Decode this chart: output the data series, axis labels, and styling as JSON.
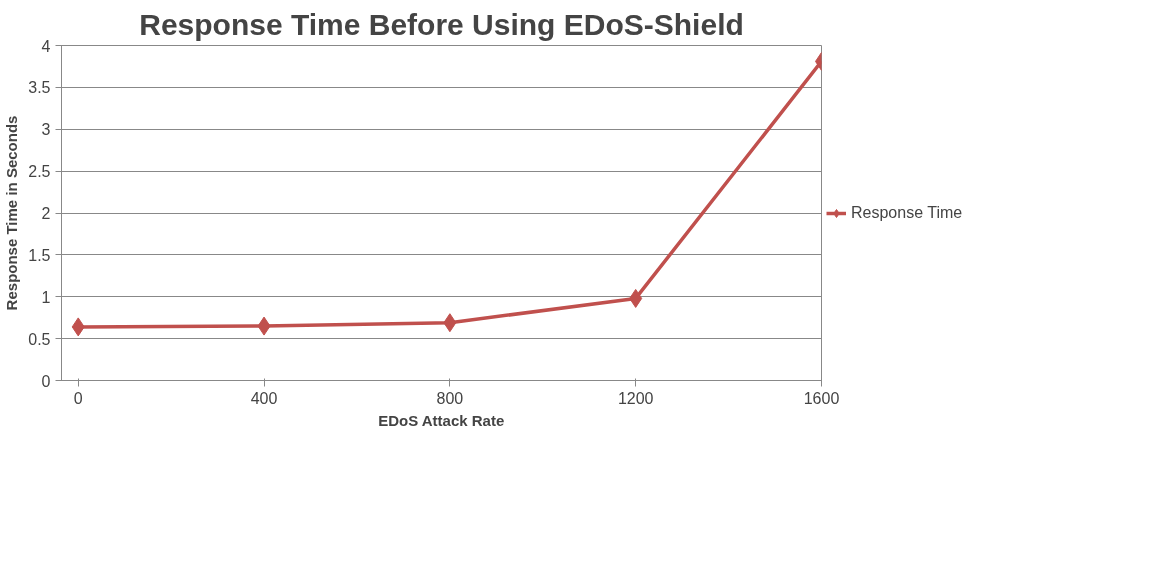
{
  "chart_data": {
    "type": "line",
    "title": "Response Time Before Using EDoS-Shield",
    "xlabel": "EDoS Attack Rate",
    "ylabel": "Response Time in Seconds",
    "categories": [
      "0",
      "400",
      "800",
      "1200",
      "1600"
    ],
    "series": [
      {
        "name": "Response Time",
        "color": "#c0504d",
        "values": [
          0.64,
          0.65,
          0.69,
          0.98,
          3.81
        ]
      }
    ],
    "ylim": [
      0,
      4
    ],
    "yticks": [
      0,
      0.5,
      1,
      1.5,
      2,
      2.5,
      3,
      3.5,
      4
    ],
    "grid": "y",
    "legend": "right",
    "marker": "diamond",
    "line_style": "solid"
  }
}
